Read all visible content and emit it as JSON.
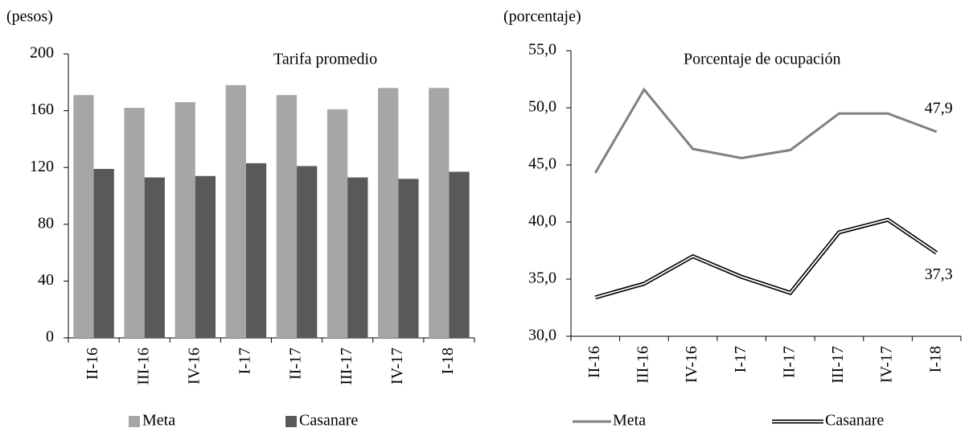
{
  "chart_data": [
    {
      "type": "bar",
      "unit_label": "(pesos)",
      "title": "Tarifa promedio",
      "categories": [
        "II-16",
        "III-16",
        "IV-16",
        "I-17",
        "II-17",
        "III-17",
        "IV-17",
        "I-18"
      ],
      "series": [
        {
          "name": "Meta",
          "color": "#a6a6a6",
          "values": [
            171,
            162,
            166,
            178,
            171,
            161,
            176,
            176
          ]
        },
        {
          "name": "Casanare",
          "color": "#595959",
          "values": [
            119,
            113,
            114,
            123,
            121,
            113,
            112,
            117
          ]
        }
      ],
      "ylim": [
        0,
        200
      ],
      "yticks": [
        0,
        40,
        80,
        120,
        160,
        200
      ],
      "legend": "bottom"
    },
    {
      "type": "line",
      "unit_label": "(porcentaje)",
      "title": "Porcentaje de ocupación",
      "categories": [
        "II-16",
        "III-16",
        "IV-16",
        "I-17",
        "II-17",
        "III-17",
        "IV-17",
        "I-18"
      ],
      "series": [
        {
          "name": "Meta",
          "color": "#808080",
          "values": [
            44.3,
            51.6,
            46.4,
            45.6,
            46.3,
            49.5,
            49.5,
            47.9
          ],
          "value_labels": [
            null,
            null,
            null,
            null,
            null,
            null,
            null,
            "47,9"
          ]
        },
        {
          "name": "Casanare",
          "color": "#000000",
          "style": "double",
          "values": [
            33.4,
            34.6,
            37.0,
            35.2,
            33.8,
            39.1,
            40.2,
            37.3
          ],
          "value_labels": [
            null,
            null,
            null,
            null,
            null,
            null,
            null,
            "37,3"
          ]
        }
      ],
      "ylim": [
        30,
        55
      ],
      "yticks": [
        {
          "value": 30,
          "label": "30,0"
        },
        {
          "value": 35,
          "label": "35,0"
        },
        {
          "value": 40,
          "label": "40,0"
        },
        {
          "value": 45,
          "label": "45,0"
        },
        {
          "value": 50,
          "label": "50,0"
        },
        {
          "value": 55,
          "label": "55,0"
        }
      ],
      "legend": "bottom"
    }
  ]
}
